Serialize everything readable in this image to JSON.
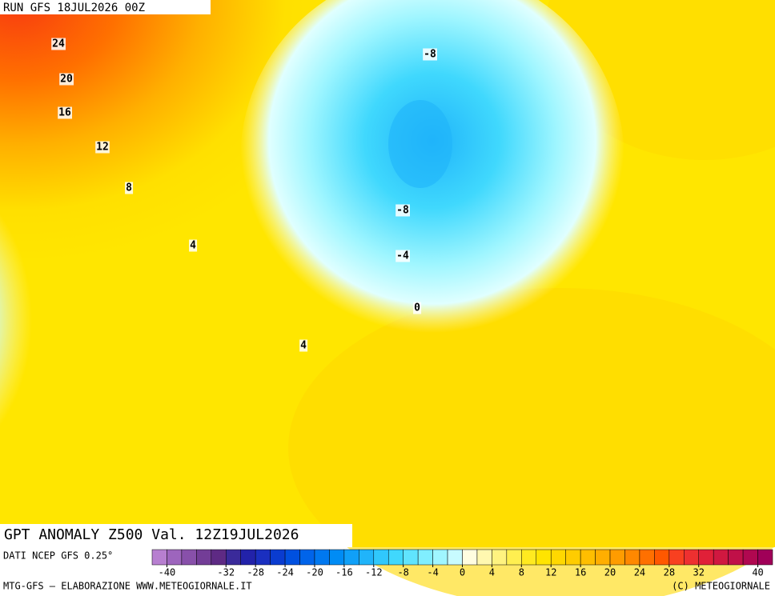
{
  "header": {
    "run": "RUN GFS 18JUL2026 00Z"
  },
  "map": {
    "title": "GPT ANOMALY Z500 Val. 12Z19JUL2026",
    "contour_labels": [
      24,
      20,
      16,
      12,
      8,
      4,
      -8,
      -8,
      -4,
      0,
      4
    ]
  },
  "legend": {
    "source": "DATI NCEP GFS 0.25°",
    "range": [
      -42,
      42
    ],
    "ticks": [
      -40,
      -32,
      -28,
      -24,
      -20,
      -16,
      -12,
      -8,
      -4,
      0,
      4,
      8,
      12,
      16,
      20,
      24,
      28,
      32,
      40
    ],
    "colors": [
      "#b77fd0",
      "#9d65bd",
      "#8850aa",
      "#733d97",
      "#5e2a84",
      "#3a2a9a",
      "#2222aa",
      "#1a2fc0",
      "#0a3cd0",
      "#0050e0",
      "#0064ea",
      "#0078f0",
      "#008cf5",
      "#10a0f8",
      "#20b4fa",
      "#30c8fc",
      "#40d8fd",
      "#60e4fe",
      "#80eeff",
      "#a0f6ff",
      "#c8fbff",
      "#fffde0",
      "#fff8b0",
      "#fff380",
      "#ffef50",
      "#ffea20",
      "#ffe400",
      "#ffd800",
      "#ffcc00",
      "#ffbe00",
      "#ffae00",
      "#ff9c00",
      "#ff8800",
      "#ff7000",
      "#ff5800",
      "#f84020",
      "#ee3030",
      "#e02038",
      "#d01840",
      "#c01048",
      "#b00850",
      "#a00058"
    ]
  },
  "footer": {
    "credit": "MTG-GFS — ELABORAZIONE WWW.METEOGIORNALE.IT",
    "copyright": "(C) METEOGIORNALE"
  }
}
